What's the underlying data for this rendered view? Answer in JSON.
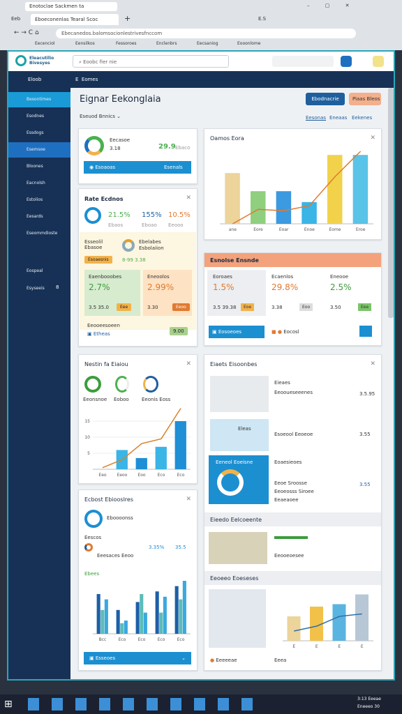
{
  "browser": {
    "window_title": "Enotoclae Sackmen ta",
    "tab_small": "Eeb",
    "tab": "Eboeconenlas Tearal Scoc",
    "right_label": "E.S",
    "address": "Ebecanedos.balomsocionlestrivesfnccom",
    "bookmarks": [
      "Eecenciol",
      "Eensilkos",
      "Fessoroes",
      "Enclenbrs",
      "Eecsaniog",
      "Eooonlome"
    ]
  },
  "header": {
    "logo": "Eleacutilio Bivesyes",
    "search": "Eoobc fier nie"
  },
  "topbar": {
    "left": "Eloob",
    "breadcrumb": [
      "E",
      "Eomes"
    ]
  },
  "sidebar": {
    "items": [
      "Besontimes",
      "Esodnes",
      "Essdogs",
      "Esemsoe",
      "Bloones",
      "Eacnolsh",
      "Estolios",
      "Eesards",
      "Eseommdioste",
      "Eospeal",
      "Esyseeis"
    ],
    "badge": "8"
  },
  "page": {
    "title": "Eignar Eekonglaia",
    "filter": "Eseuod Bnnics",
    "button_primary": "Ebodnacrie",
    "button_secondary": "Piaas Bleos",
    "tabs": [
      "Eesonas",
      "Eneaas",
      "Eekenes"
    ]
  },
  "card_a": {
    "label": "Eecasoe",
    "sub": "3.18",
    "value": "29.9",
    "value_note": "Ebaco",
    "button": "Esoaoas",
    "button_right": "Esenals"
  },
  "card_b": {
    "title": "Rate Ecdnos",
    "kpis": [
      "21.5%",
      "155%",
      "10.5%"
    ],
    "kpi_notes": [
      "Ebaos",
      "Eboao",
      "Eeooo"
    ],
    "row_label": "Esseolil Ebasoe",
    "row_title": "Ebelabes",
    "row_sub": "Esbolaiion",
    "row_values": "8-99 3.38",
    "row_chip": "Esoaesnis",
    "green_title": "Eaenbooobes",
    "green_value": "2.7%",
    "green_foot": "3.5 35.0",
    "green_chip": "Eee",
    "orange_title": "Eneoolos",
    "orange_value": "2.99%",
    "orange_foot": "3.30",
    "orange_chip": "Eeoo",
    "foot_title": "Eeooeesoeen",
    "foot_link": "Etheas",
    "foot_button": "9.00"
  },
  "card_c": {
    "title": "Oamos Eora",
    "chart": {
      "type": "bar",
      "categories": [
        "ane",
        "Eore",
        "Eoar",
        "Enoe",
        "Eome",
        "Eroe"
      ],
      "series": [
        {
          "values": [
            70,
            45,
            45,
            30,
            95,
            95
          ],
          "colors": [
            "#ecd49a",
            "#8fcf7e",
            "#3b9ae0",
            "#3bb4e6",
            "#f2d24a",
            "#5ac3e8"
          ]
        }
      ],
      "line": {
        "values": [
          0,
          20,
          18,
          25,
          65,
          100
        ],
        "color": "#e07a30"
      },
      "ylim": [
        0,
        100
      ]
    }
  },
  "card_d": {
    "title": "Esnolse Ensnde",
    "cols": [
      {
        "title": "Eoroaes",
        "value": "1.5%",
        "foot": "3.5 39.38",
        "chip": "Eoe"
      },
      {
        "title": "Ecaenlos",
        "value": "29.8%",
        "foot": "3.38",
        "chip": "Eoo"
      },
      {
        "title": "Eneooe",
        "value": "2.5%",
        "foot": "3.50",
        "chip": "Eee"
      }
    ],
    "button": "Eosoeoes",
    "middle": "Eocosl"
  },
  "card_e": {
    "title": "Nestin fa Eiaiou",
    "ring_labels": [
      "Eeonsnoe",
      "Eoboo",
      "Eeonis Eoss"
    ],
    "chart": {
      "type": "bar",
      "categories": [
        "Eeo",
        "Eeoo",
        "Eoo",
        "Eco",
        "Eco"
      ],
      "series": [
        {
          "values": [
            null,
            6,
            3.5,
            7,
            15
          ],
          "colors": [
            "#3bb4e6",
            "#3bb4e6",
            "#1f8fd6",
            "#3bb4e6",
            "#1f8fd6"
          ]
        }
      ],
      "line": {
        "values": [
          0.5,
          3,
          8,
          9.5,
          19
        ],
        "color": "#d9822b"
      },
      "ylim": [
        0,
        20
      ],
      "yticks": [
        5,
        10,
        15
      ]
    }
  },
  "card_f": {
    "title": "Ecbost Ebiooslres",
    "head": "Eboooonss",
    "list_title": "Eescos",
    "list_sub": "Eeesaces  Eeoo",
    "pct1": "3.35%",
    "pct2": "35.5",
    "sub_label": "Ebees",
    "chart": {
      "type": "bar",
      "categories": [
        "Bcc",
        "Eco",
        "Eco",
        "Eco",
        "Eco"
      ],
      "series": [
        {
          "values": [
            15,
            9,
            12,
            16,
            18
          ],
          "colors": [
            "#1d5fa8"
          ]
        },
        {
          "values": [
            9,
            4,
            15,
            8,
            13
          ],
          "colors": [
            "#5bbcb8"
          ]
        },
        {
          "values": [
            13,
            5,
            8,
            14,
            20
          ],
          "colors": [
            "#3aa8df"
          ]
        }
      ],
      "ylim": [
        0,
        20
      ]
    },
    "button": "Esseoes"
  },
  "card_g": {
    "title": "Eiaets Eisoonbes",
    "row1_title": "Eieaes",
    "row1_sub": "Eeooueseeenes",
    "row1_value": "3.5.95",
    "row2_label": "Eleas",
    "row2_title": "Esoeool Eeoeoe",
    "row2_value": "3.55",
    "row3_head": "Eeneol Eoeisne",
    "row3_title": "Eoaesieoes",
    "row3_lines": [
      "Eeoe Sroosse",
      "Eeoeosss Siroee",
      "Eeaeaoee"
    ],
    "row3_value": "3.55",
    "section1": "Eieedo Eelcoeente",
    "row4_sub": "Eeooeoesee",
    "section2": "Eeoeeo Eoeseses",
    "chart": {
      "type": "bar",
      "categories": [
        "E",
        "E",
        "E",
        "E"
      ],
      "series": [
        {
          "values": [
            50,
            70,
            75,
            95
          ],
          "colors": [
            "#ecd49a",
            "#f2c14a",
            "#5ab4e0",
            "#b8c7d6"
          ]
        }
      ],
      "line": {
        "values": [
          20,
          30,
          50,
          55
        ],
        "color": "#2f6fa8"
      },
      "ylim": [
        0,
        100
      ]
    },
    "foot_left": "Eeeeeae",
    "foot_mid": "Eeea"
  },
  "taskbar": {
    "clock": "3:13 Eeeae",
    "date": "Eneeeo 30"
  }
}
